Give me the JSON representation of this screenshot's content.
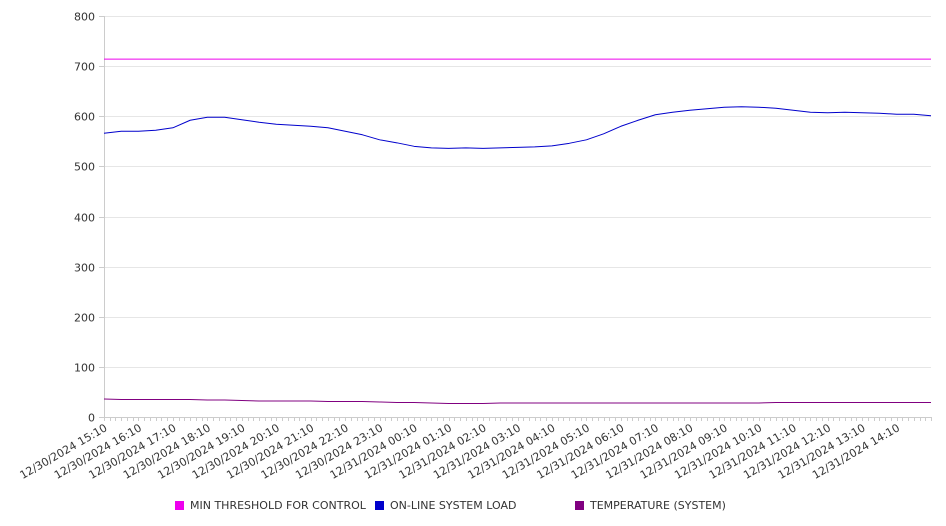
{
  "chart_data": {
    "type": "line",
    "ylim": [
      0,
      800
    ],
    "y_ticks": [
      0,
      100,
      200,
      300,
      400,
      500,
      600,
      700,
      800
    ],
    "grid": true,
    "legend_position": "bottom",
    "x_start": "12/30/2024 15:10",
    "x_end": "12/31/2024 15:10",
    "x_tick_labels": [
      "12/30/2024 15:10",
      "12/30/2024 16:10",
      "12/30/2024 17:10",
      "12/30/2024 18:10",
      "12/30/2024 19:10",
      "12/30/2024 20:10",
      "12/30/2024 21:10",
      "12/30/2024 22:10",
      "12/30/2024 23:10",
      "12/31/2024 00:10",
      "12/31/2024 01:10",
      "12/31/2024 02:10",
      "12/31/2024 03:10",
      "12/31/2024 04:10",
      "12/31/2024 05:10",
      "12/31/2024 06:10",
      "12/31/2024 07:10",
      "12/31/2024 08:10",
      "12/31/2024 09:10",
      "12/31/2024 10:10",
      "12/31/2024 11:10",
      "12/31/2024 12:10",
      "12/31/2024 13:10",
      "12/31/2024 14:10"
    ],
    "x": [
      "12/30/2024 15:10",
      "12/30/2024 15:40",
      "12/30/2024 16:10",
      "12/30/2024 16:40",
      "12/30/2024 17:10",
      "12/30/2024 17:40",
      "12/30/2024 18:10",
      "12/30/2024 18:40",
      "12/30/2024 19:10",
      "12/30/2024 19:40",
      "12/30/2024 20:10",
      "12/30/2024 20:40",
      "12/30/2024 21:10",
      "12/30/2024 21:40",
      "12/30/2024 22:10",
      "12/30/2024 22:40",
      "12/30/2024 23:10",
      "12/30/2024 23:40",
      "12/31/2024 00:10",
      "12/31/2024 00:40",
      "12/31/2024 01:10",
      "12/31/2024 01:40",
      "12/31/2024 02:10",
      "12/31/2024 02:40",
      "12/31/2024 03:10",
      "12/31/2024 03:40",
      "12/31/2024 04:10",
      "12/31/2024 04:40",
      "12/31/2024 05:10",
      "12/31/2024 05:40",
      "12/31/2024 06:10",
      "12/31/2024 06:40",
      "12/31/2024 07:10",
      "12/31/2024 07:40",
      "12/31/2024 08:10",
      "12/31/2024 08:40",
      "12/31/2024 09:10",
      "12/31/2024 09:40",
      "12/31/2024 10:10",
      "12/31/2024 10:40",
      "12/31/2024 11:10",
      "12/31/2024 11:40",
      "12/31/2024 12:10",
      "12/31/2024 12:40",
      "12/31/2024 13:10",
      "12/31/2024 13:40",
      "12/31/2024 14:10",
      "12/31/2024 14:40",
      "12/31/2024 15:10"
    ],
    "series": [
      {
        "name": "MIN THRESHOLD FOR CONTROL",
        "color": "#ee00ee",
        "values": [
          714,
          714,
          714,
          714,
          714,
          714,
          714,
          714,
          714,
          714,
          714,
          714,
          714,
          714,
          714,
          714,
          714,
          714,
          714,
          714,
          714,
          714,
          714,
          714,
          714,
          714,
          714,
          714,
          714,
          714,
          714,
          714,
          714,
          714,
          714,
          714,
          714,
          714,
          714,
          714,
          714,
          714,
          714,
          714,
          714,
          714,
          714,
          714,
          714
        ]
      },
      {
        "name": "ON-LINE SYSTEM LOAD",
        "color": "#0000cc",
        "values": [
          566,
          570,
          570,
          572,
          577,
          592,
          598,
          598,
          593,
          588,
          584,
          582,
          580,
          577,
          570,
          563,
          553,
          547,
          540,
          537,
          536,
          537,
          536,
          537,
          538,
          539,
          541,
          546,
          553,
          565,
          580,
          592,
          603,
          608,
          612,
          615,
          618,
          619,
          618,
          616,
          612,
          608,
          607,
          608,
          607,
          606,
          604,
          604,
          601
        ]
      },
      {
        "name": "TEMPERATURE (SYSTEM)",
        "color": "#800080",
        "values": [
          36,
          35,
          35,
          35,
          35,
          35,
          34,
          34,
          33,
          32,
          32,
          32,
          32,
          31,
          31,
          31,
          30,
          29,
          29,
          28,
          27,
          27,
          27,
          28,
          28,
          28,
          28,
          28,
          28,
          28,
          28,
          28,
          28,
          28,
          28,
          28,
          28,
          28,
          28,
          29,
          29,
          29,
          29,
          29,
          29,
          29,
          29,
          29,
          29
        ]
      }
    ]
  }
}
